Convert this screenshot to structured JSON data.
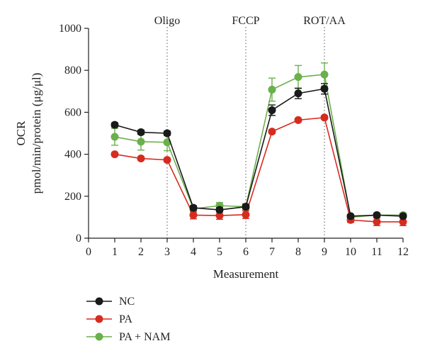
{
  "chart_data": {
    "type": "line",
    "xlabel": "Measurement",
    "ylabel_lines": [
      "OCR",
      "pmol/min/protein (μg/μl)"
    ],
    "xlim": [
      0,
      12
    ],
    "ylim": [
      0,
      1000
    ],
    "x_ticks": [
      0,
      1,
      2,
      3,
      4,
      5,
      6,
      7,
      8,
      9,
      10,
      11,
      12
    ],
    "y_ticks": [
      0,
      200,
      400,
      600,
      800,
      1000
    ],
    "grid": false,
    "legend_position": "bottom-left",
    "annotations": [
      {
        "label": "Oligo",
        "x": 3
      },
      {
        "label": "FCCP",
        "x": 6
      },
      {
        "label": "ROT/AA",
        "x": 9
      }
    ],
    "x": [
      1,
      2,
      3,
      4,
      5,
      6,
      7,
      8,
      9,
      10,
      11,
      12
    ],
    "series": [
      {
        "name": "NC",
        "color": "#1a1a1a",
        "values": [
          540,
          505,
          500,
          145,
          135,
          150,
          610,
          690,
          712,
          105,
          110,
          105
        ],
        "errors": [
          10,
          10,
          10,
          10,
          10,
          10,
          25,
          25,
          25,
          8,
          8,
          8
        ]
      },
      {
        "name": "PA",
        "color": "#d62b1f",
        "values": [
          400,
          380,
          373,
          110,
          108,
          112,
          508,
          563,
          575,
          87,
          78,
          78
        ],
        "errors": [
          8,
          8,
          8,
          18,
          18,
          18,
          8,
          8,
          8,
          12,
          18,
          18
        ]
      },
      {
        "name": "PA + NAM",
        "color": "#6ab04c",
        "values": [
          483,
          460,
          457,
          140,
          155,
          150,
          708,
          768,
          780,
          100,
          110,
          110
        ],
        "errors": [
          40,
          40,
          40,
          15,
          15,
          15,
          55,
          55,
          55,
          10,
          10,
          10
        ]
      }
    ]
  }
}
